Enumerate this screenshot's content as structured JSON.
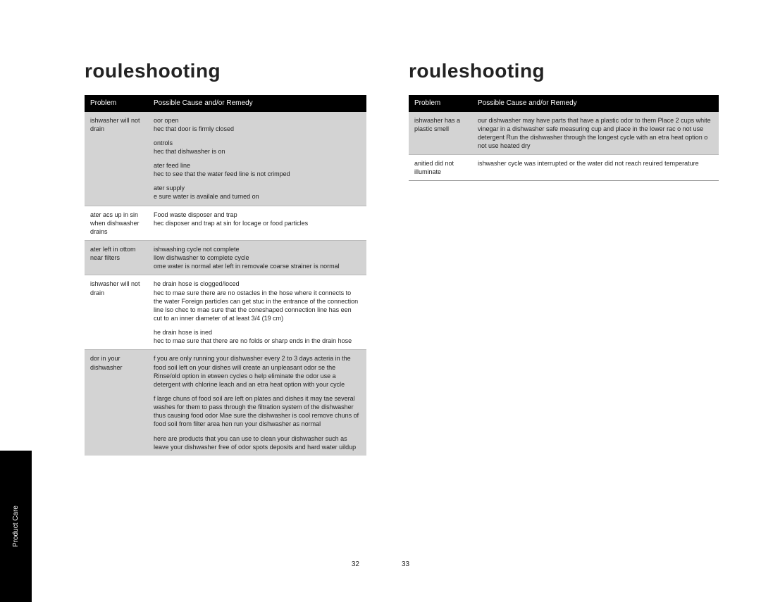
{
  "heading_left": "rouleshooting",
  "heading_right": "rouleshooting",
  "side_tab": "Product Care",
  "page_num_left": "32",
  "page_num_right": "33",
  "table_headers": {
    "col1": "Problem",
    "col2": "Possible Cause and/or Remedy"
  },
  "left_rows": [
    {
      "shaded": true,
      "problem": "ishwasher will not drain",
      "remedy": [
        "oor open\nhec that door is firmly closed",
        "ontrols\nhec that dishwasher is on",
        "ater feed line\nhec to see that the water feed line is not crimped",
        "ater supply\ne sure water is availale and turned on"
      ]
    },
    {
      "shaded": false,
      "problem": "ater acs up in sin when dishwasher drains",
      "remedy": [
        "Food waste disposer and trap\nhec disposer and trap at sin for locage or food particles"
      ]
    },
    {
      "shaded": true,
      "problem": "ater left in ottom near filters",
      "remedy": [
        "ishwashing cycle not complete\nllow dishwasher to complete cycle\nome water is normal ater left in removale coarse strainer is normal"
      ]
    },
    {
      "shaded": false,
      "problem": "ishwasher will not drain",
      "remedy": [
        "he drain hose is clogged/loced\nhec to mae sure there are no ostacles in the hose where it connects to the water Foreign particles can get stuc in the entrance of the connection line lso chec to mae sure that the coneshaped connection line has een cut to an inner diameter of at least 3/4  (19 cm)",
        "he drain hose is ined\nhec to mae sure that there are no folds or sharp ends in the drain hose"
      ]
    },
    {
      "shaded": true,
      "problem": "dor in your dishwasher",
      "remedy": [
        "f you are only running your dishwasher every 2 to 3 days acteria in the food soil left on your dishes will create an unpleasant odor se the Rinse/old option in etween cycles o help eliminate the odor use a detergent with chlorine leach and an etra heat option with your cycle",
        "f large chuns of food soil are left on plates and dishes it may tae several washes for them to pass through the filtration system of the    dishwasher thus causing food odor Mae sure the dishwasher is cool remove chuns of food soil from filter area hen run your dishwasher as normal",
        "here are products that you can use to clean your dishwasher such as leave your dishwasher free of odor spots deposits and hard water uildup"
      ]
    }
  ],
  "right_rows": [
    {
      "shaded": true,
      "problem": "ishwasher has a plastic smell",
      "remedy": [
        "our dishwasher may have parts that have a plastic odor to them Place 2 cups white vinegar in a dishwasher safe measuring cup and place in the lower rac o not use detergent Run the dishwasher through the longest cycle with an etra heat option o not use heated dry"
      ]
    },
    {
      "shaded": false,
      "problem": "anitied  did not illuminate",
      "remedy": [
        "ishwasher cycle was interrupted or the water did not reach reuired temperature"
      ]
    }
  ]
}
